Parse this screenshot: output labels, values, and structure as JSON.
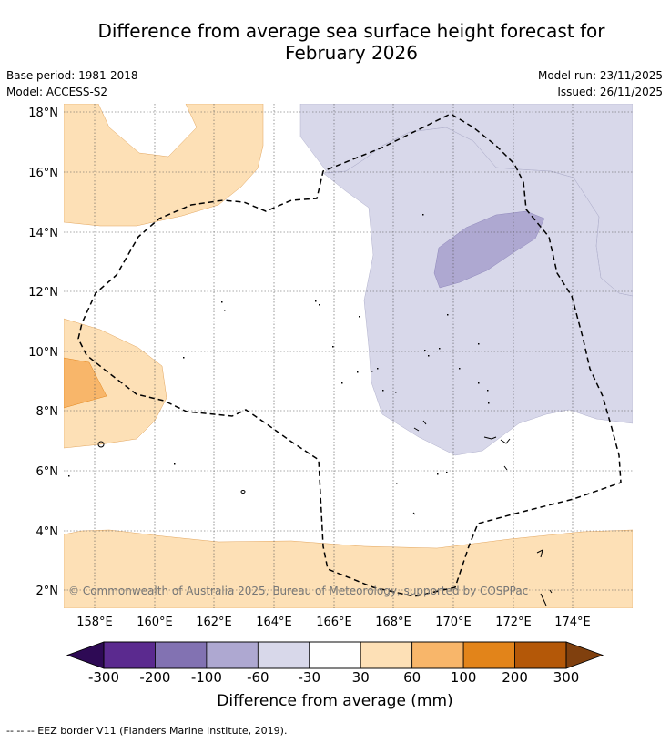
{
  "title_line1": "Difference from average sea surface height forecast for",
  "title_line2": "February 2026",
  "meta": {
    "base_period": "Base period: 1981-2018",
    "model": "Model: ACCESS-S2",
    "model_run": "Model run: 23/11/2025",
    "issued": "Issued: 26/11/2025"
  },
  "map": {
    "lon_ticks": [
      "158°E",
      "160°E",
      "162°E",
      "164°E",
      "166°E",
      "168°E",
      "170°E",
      "172°E",
      "174°E"
    ],
    "lat_ticks": [
      "18°N",
      "16°N",
      "14°N",
      "12°N",
      "10°N",
      "8°N",
      "6°N",
      "4°N",
      "2°N"
    ],
    "copyright": "© Commonwealth of Australia 2025, Bureau of Meteorology, supported by COSPPac"
  },
  "colorbar": {
    "colors": [
      "#5b2a8f",
      "#8272b2",
      "#aea8d1",
      "#d8d8ea",
      "#ffffff",
      "#fde0b6",
      "#f8b66a",
      "#e2841a",
      "#b45808"
    ],
    "under_color": "#2e0a55",
    "over_color": "#80400e",
    "ticks": [
      "-300",
      "-200",
      "-100",
      "-60",
      "-30",
      "30",
      "60",
      "100",
      "200",
      "300"
    ],
    "label": "Difference from average (mm)"
  },
  "legend": {
    "eez_text": "--  --  -- EEZ border V11 (Flanders Marine Institute, 2019)."
  }
}
